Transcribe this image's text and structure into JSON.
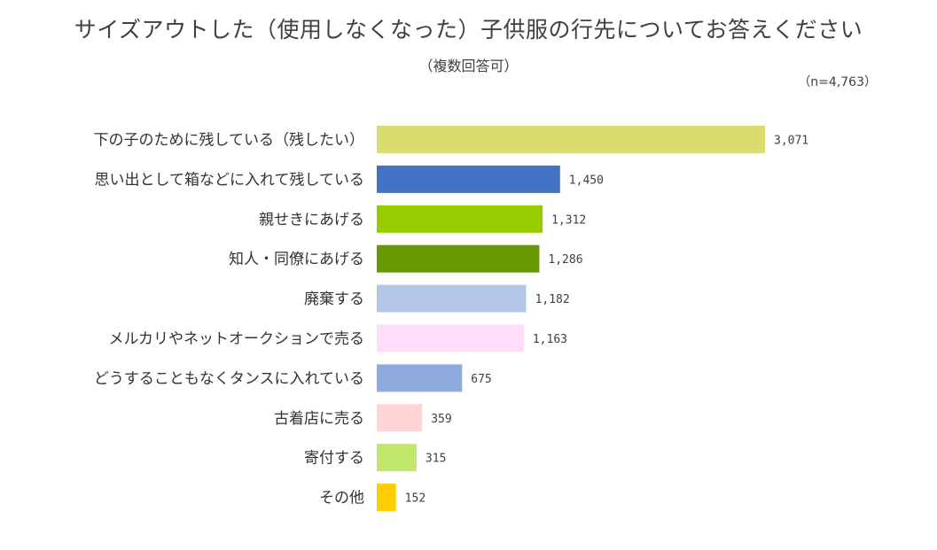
{
  "chart_data": {
    "type": "bar",
    "orientation": "horizontal",
    "title": "サイズアウトした（使用しなくなった）子供服の行先についてお答えください",
    "subtitle": "（複数回答可）",
    "sample_size": "（n=4,763）",
    "categories": [
      "下の子のために残している（残したい）",
      "思い出として箱などに入れて残している",
      "親せきにあげる",
      "知人・同僚にあげる",
      "廃棄する",
      "メルカリやネットオークションで売る",
      "どうすることもなくタンスに入れている",
      "古着店に売る",
      "寄付する",
      "その他"
    ],
    "values": [
      3071,
      1450,
      1312,
      1286,
      1182,
      1163,
      675,
      359,
      315,
      152
    ],
    "value_labels": [
      "3,071",
      "1,450",
      "1,312",
      "1,286",
      "1,182",
      "1,163",
      "675",
      "359",
      "315",
      "152"
    ],
    "colors": [
      "#dadc6e",
      "#4472c4",
      "#99cc00",
      "#669900",
      "#b4c7e7",
      "#ffdcf8",
      "#8faadc",
      "#ffd5d5",
      "#c2e86b",
      "#ffcc00"
    ],
    "xlim": [
      0,
      3071
    ],
    "grid": false,
    "legend": "none"
  }
}
